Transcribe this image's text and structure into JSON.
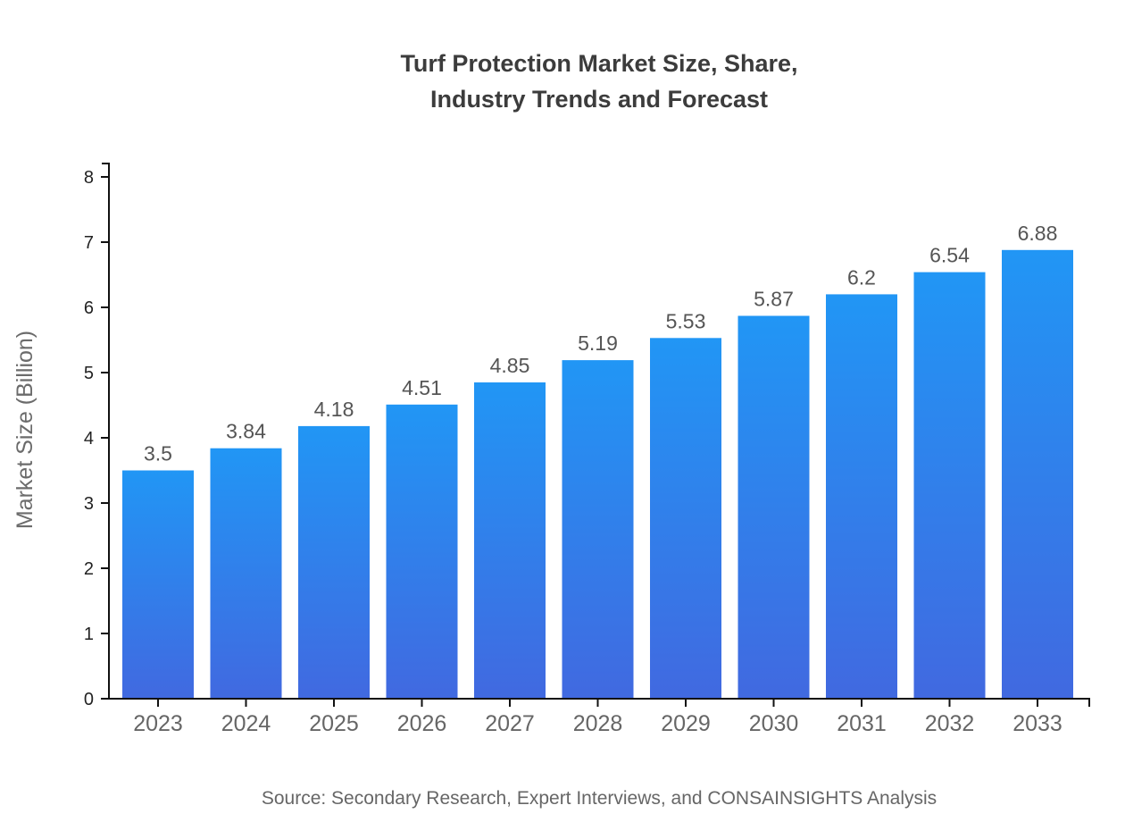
{
  "chart_data": {
    "type": "bar",
    "title_lines": [
      "Turf Protection Market Size, Share,",
      "Industry Trends and Forecast"
    ],
    "categories": [
      "2023",
      "2024",
      "2025",
      "2026",
      "2027",
      "2028",
      "2029",
      "2030",
      "2031",
      "2032",
      "2033"
    ],
    "values": [
      3.5,
      3.84,
      4.18,
      4.51,
      4.85,
      5.19,
      5.53,
      5.87,
      6.2,
      6.54,
      6.88
    ],
    "value_labels": [
      "3.5",
      "3.84",
      "4.18",
      "4.51",
      "4.85",
      "5.19",
      "5.53",
      "5.87",
      "6.2",
      "6.54",
      "6.88"
    ],
    "xlabel": "",
    "ylabel": "Market Size (Billion)",
    "ylim": [
      0,
      8
    ],
    "yticks": [
      0,
      1,
      2,
      3,
      4,
      5,
      6,
      7,
      8
    ],
    "grid": "off",
    "legend": "none",
    "source": "Source: Secondary Research, Expert Interviews, and CONSAINSIGHTS Analysis",
    "colors": {
      "bar_gradient_top": "#2196F5",
      "bar_gradient_bottom": "#4169E0",
      "axis_line": "#111111",
      "y_tick_label": "#222222",
      "x_tick_label": "#666666",
      "value_label": "#555555",
      "title": "#3C3C3C",
      "y_axis_title": "#6B6B6B",
      "source_text": "#666666",
      "background": "#FFFFFF"
    }
  }
}
